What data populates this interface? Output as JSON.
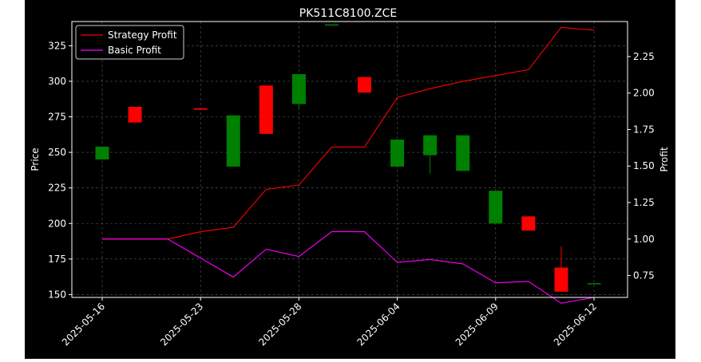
{
  "chart_data": {
    "type": "candlestick+line",
    "title": "PK511C8100.ZCE",
    "ylabel_left": "Price",
    "ylabel_right": "Profit",
    "ylim_left": [
      148,
      342
    ],
    "ylim_right": [
      0.6,
      2.49
    ],
    "yticks_left": [
      150,
      175,
      200,
      225,
      250,
      275,
      300,
      325
    ],
    "yticks_right": [
      0.75,
      1.0,
      1.25,
      1.5,
      1.75,
      2.0,
      2.25
    ],
    "ytick_labels_right": [
      "0.75",
      "1.00",
      "1.25",
      "1.50",
      "1.75",
      "2.00",
      "2.25"
    ],
    "xtick_labels": [
      "2025-05-16",
      "2025-05-23",
      "2025-05-28",
      "2025-06-04",
      "2025-06-09",
      "2025-06-12"
    ],
    "xtick_index": [
      0,
      3,
      6,
      9,
      12,
      15
    ],
    "grid": true,
    "legend_position": "top-left",
    "colors": {
      "background": "#000000",
      "foreground": "#ffffff",
      "up": "#008000",
      "down": "#ff0000",
      "strategy": "#ff0000",
      "basic": "#ff00ff",
      "grid": "#808080"
    },
    "candles": [
      {
        "open": 245,
        "close": 254,
        "high": 254,
        "low": 245
      },
      {
        "open": 282,
        "close": 271,
        "high": 282,
        "low": 271
      },
      {
        "open": null,
        "close": null,
        "high": null,
        "low": null
      },
      {
        "open": 281,
        "close": 280,
        "high": 281,
        "low": 280
      },
      {
        "open": 240,
        "close": 276,
        "high": 276,
        "low": 240
      },
      {
        "open": 297,
        "close": 263,
        "high": 297,
        "low": 263
      },
      {
        "open": 284,
        "close": 305,
        "high": 305,
        "low": 280
      },
      {
        "open": 340,
        "close": 340,
        "high": 340,
        "low": 340
      },
      {
        "open": 303,
        "close": 292,
        "high": 303,
        "low": 292
      },
      {
        "open": 240,
        "close": 259,
        "high": 259,
        "low": 240
      },
      {
        "open": 248,
        "close": 262,
        "high": 262,
        "low": 235
      },
      {
        "open": 237,
        "close": 262,
        "high": 262,
        "low": 237
      },
      {
        "open": 200,
        "close": 223,
        "high": 223,
        "low": 200
      },
      {
        "open": 205,
        "close": 195,
        "high": 205,
        "low": 195
      },
      {
        "open": 169,
        "close": 152,
        "high": 184,
        "low": 152
      },
      {
        "open": 158,
        "close": 158,
        "high": 158,
        "low": 158
      }
    ],
    "series": [
      {
        "name": "Strategy Profit",
        "values": [
          1.0,
          1.0,
          1.0,
          1.05,
          1.08,
          1.34,
          1.37,
          1.63,
          1.63,
          1.97,
          2.03,
          2.08,
          2.12,
          2.16,
          2.45,
          2.43
        ]
      },
      {
        "name": "Basic Profit",
        "values": [
          1.0,
          1.0,
          1.0,
          0.87,
          0.74,
          0.93,
          0.88,
          1.05,
          1.05,
          0.84,
          0.86,
          0.83,
          0.7,
          0.71,
          0.56,
          0.6
        ]
      }
    ]
  }
}
